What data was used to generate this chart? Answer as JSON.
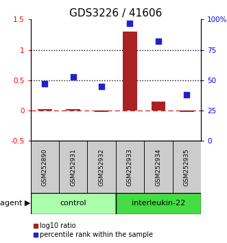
{
  "title": "GDS3226 / 41606",
  "samples": [
    "GSM252890",
    "GSM252931",
    "GSM252932",
    "GSM252933",
    "GSM252934",
    "GSM252935"
  ],
  "log10_ratio": [
    0.02,
    0.02,
    -0.02,
    1.3,
    0.15,
    -0.02
  ],
  "percentile_rank": [
    47,
    53,
    45,
    97,
    82,
    38
  ],
  "groups": [
    {
      "label": "control",
      "indices": [
        0,
        1,
        2
      ],
      "color": "#aaffaa"
    },
    {
      "label": "interleukin-22",
      "indices": [
        3,
        4,
        5
      ],
      "color": "#44dd44"
    }
  ],
  "left_ylim": [
    -0.5,
    1.5
  ],
  "right_ylim": [
    0,
    100
  ],
  "left_yticks": [
    -0.5,
    0.0,
    0.5,
    1.0,
    1.5
  ],
  "right_yticks": [
    0,
    25,
    50,
    75,
    100
  ],
  "left_yticklabels": [
    "-0.5",
    "0",
    "0.5",
    "1",
    "1.5"
  ],
  "right_yticklabels": [
    "0",
    "25",
    "50",
    "75",
    "100%"
  ],
  "hlines_black": [
    0.5,
    1.0
  ],
  "bar_color": "#aa2222",
  "dot_color": "#2222cc",
  "bar_width": 0.5,
  "title_fontsize": 11,
  "legend_label_ratio": "log10 ratio",
  "legend_label_pct": "percentile rank within the sample",
  "agent_label": "agent",
  "zero_line_color": "#cc3333",
  "marker_size": 6,
  "sample_box_color": "#cccccc",
  "tick_fontsize": 7.5,
  "sample_fontsize": 6.5,
  "agent_fontsize": 8,
  "legend_fontsize": 7
}
